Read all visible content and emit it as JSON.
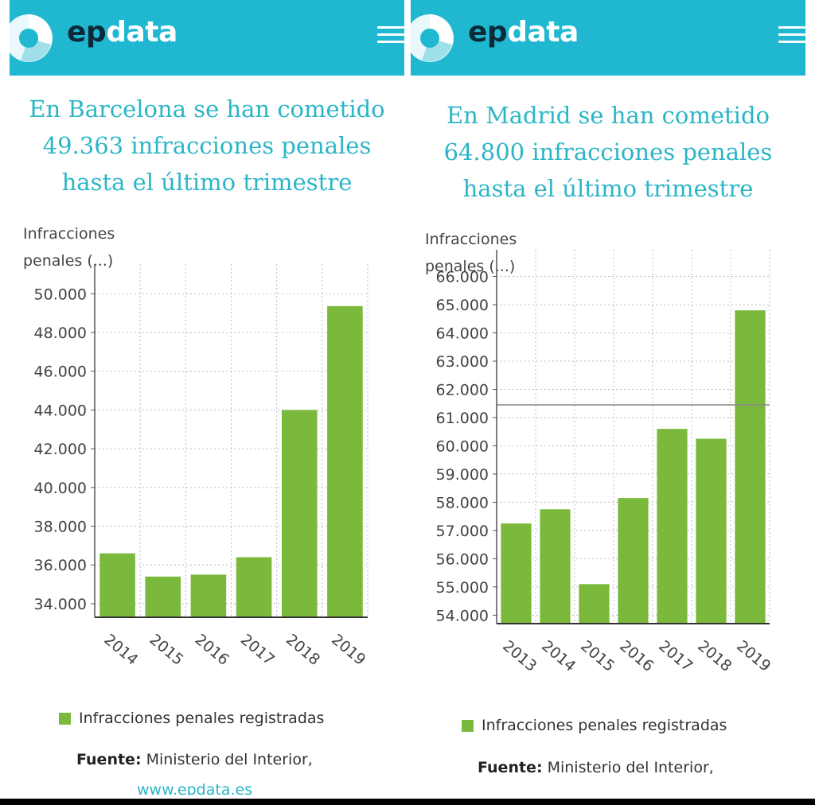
{
  "brand": {
    "ep": "ep",
    "data": "data"
  },
  "colors": {
    "header": "#1fb8d0",
    "title": "#2bb6c7",
    "bar": "#7ab93b"
  },
  "icons": [
    "epdata-logo-icon",
    "hamburger-menu-icon"
  ],
  "left": {
    "title_lines": [
      "En Barcelona se han cometido",
      "49.363 infracciones penales",
      "hasta el último trimestre"
    ],
    "legend": "Infracciones penales registradas",
    "source_label": "Fuente:",
    "source_value": " Ministerio del Interior,",
    "url": "www.epdata.es"
  },
  "right": {
    "title_lines": [
      "En Madrid se han cometido",
      "64.800 infracciones penales",
      "hasta el último trimestre"
    ],
    "legend": "Infracciones penales registradas",
    "source_label": "Fuente:",
    "source_value": " Ministerio del Interior,"
  },
  "chart_data": [
    {
      "type": "bar",
      "ylabel": "Infracciones penales (...)",
      "categories": [
        "2014",
        "2015",
        "2016",
        "2017",
        "2018",
        "2019"
      ],
      "series": [
        {
          "name": "Infracciones penales registradas",
          "values": [
            36600,
            35400,
            35500,
            36400,
            44000,
            49363
          ]
        }
      ],
      "ylim": [
        33300,
        50300
      ],
      "yticks": [
        "34.000",
        "36.000",
        "38.000",
        "40.000",
        "42.000",
        "44.000",
        "46.000",
        "48.000",
        "50.000"
      ],
      "grid": true,
      "legend": "bottom"
    },
    {
      "type": "bar",
      "ylabel": "Infracciones penales (...)",
      "categories": [
        "2013",
        "2014",
        "2015",
        "2016",
        "2017",
        "2018",
        "2019"
      ],
      "series": [
        {
          "name": "Infracciones penales registradas",
          "values": [
            57250,
            57750,
            55100,
            58150,
            60600,
            60250,
            64800
          ]
        }
      ],
      "ylim": [
        53700,
        66100
      ],
      "yticks": [
        "54.000",
        "55.000",
        "56.000",
        "57.000",
        "58.000",
        "59.000",
        "60.000",
        "61.000",
        "62.000",
        "63.000",
        "64.000",
        "65.000",
        "66.000"
      ],
      "reference_line": 61450,
      "grid": true,
      "legend": "bottom"
    }
  ]
}
